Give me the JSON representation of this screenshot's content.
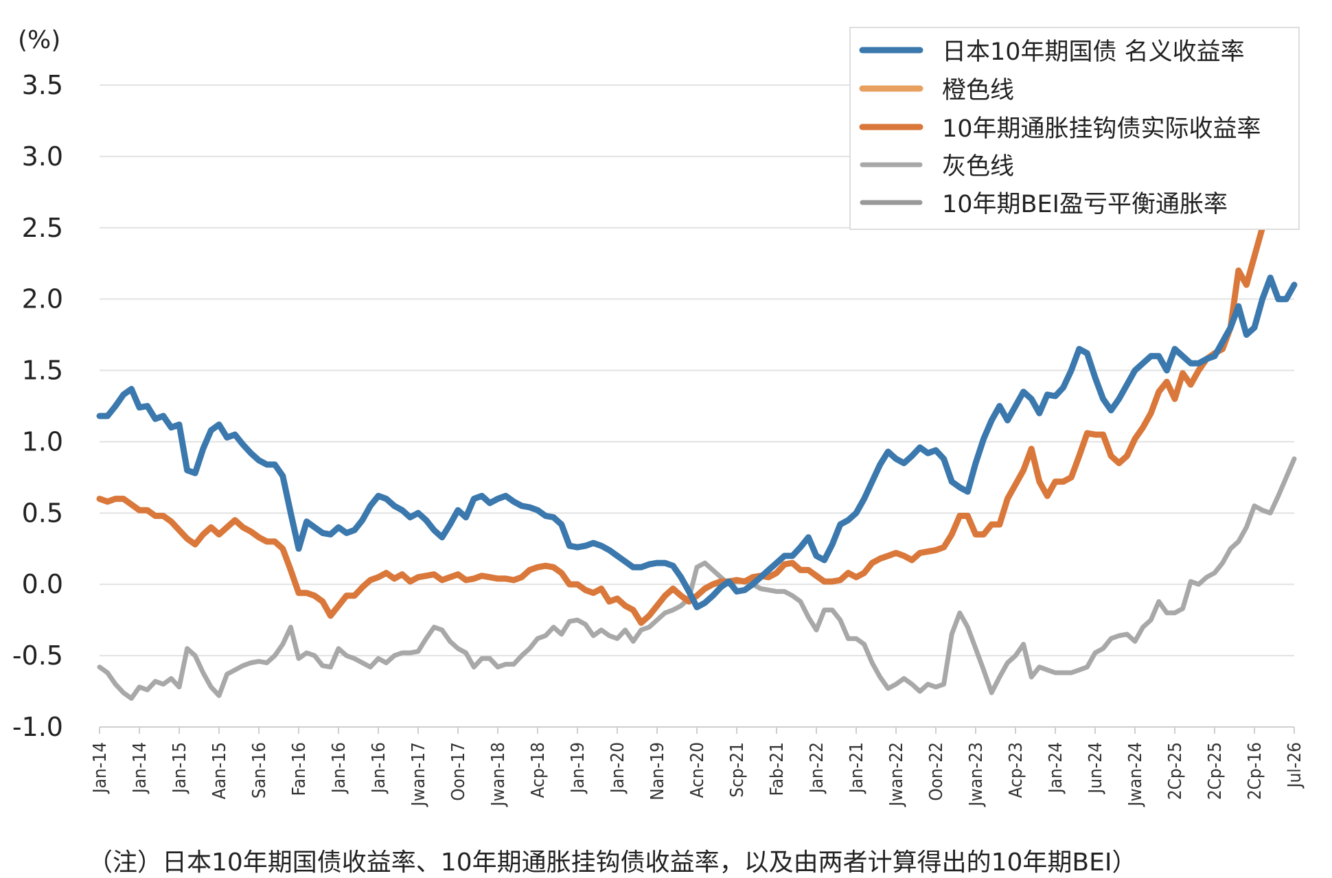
{
  "chart_data": {
    "type": "line",
    "unit_label": "(%)",
    "note": "（注）日本10年期国债收益率、10年期通胀挂钩债收益率，以及由两者计算得出的10年期BEI）",
    "ylim": [
      -1.0,
      3.5
    ],
    "yticks": [
      "3.5",
      "3.0",
      "2.5",
      "2.0",
      "1.5",
      "1.0",
      "0.5",
      "0.0",
      "-0.5",
      "-1.0"
    ],
    "x_tick_labels": [
      "Jan-14",
      "Jan-14",
      "Jan-15",
      "Aan-15",
      "San-16",
      "Fan-16",
      "Jan-16",
      "Jan-16",
      "Jwan-17",
      "Oon-17",
      "Jwan-18",
      "Acp-18",
      "Jan-19",
      "Jan-20",
      "Nan-19",
      "Acn-20",
      "Scp-21",
      "Fab-21",
      "Jan-22",
      "Jan-21",
      "Jwan-22",
      "Oon-22",
      "Jwan-23",
      "Acp-23",
      "Jan-24",
      "Jun-24",
      "Jwan-24",
      "2Cp-25",
      "2Cp-25",
      "2Cp-16",
      "Jul-26"
    ],
    "grid": true,
    "legend_position": "top-right",
    "legend": [
      {
        "name": "日本10年期国债 名义收益率",
        "color": "#3a78ad"
      },
      {
        "name": "橙色线",
        "color": "#e8a060"
      },
      {
        "name": "10年期通胀挂钩债实际收益率",
        "color": "#d9783a"
      },
      {
        "name": "灰色线",
        "color": "#a8a8a8"
      },
      {
        "name": "10年期BEI盈亏平衡通胀率",
        "color": "#999999"
      }
    ],
    "x_range": [
      0,
      150
    ],
    "series": [
      {
        "name": "日本10年期国债 名义收益率",
        "color": "#3a78ad",
        "width": 9,
        "x": [
          0,
          1,
          2,
          3,
          4,
          5,
          6,
          7,
          8,
          9,
          10,
          11,
          12,
          13,
          14,
          15,
          16,
          17,
          18,
          19,
          20,
          21,
          22,
          23,
          24,
          25,
          26,
          27,
          28,
          29,
          30,
          31,
          32,
          33,
          34,
          35,
          36,
          37,
          38,
          39,
          40,
          41,
          42,
          43,
          44,
          45,
          46,
          47,
          48,
          49,
          50,
          51,
          52,
          53,
          54,
          55,
          56,
          57,
          58,
          59,
          60,
          61,
          62,
          63,
          64,
          65,
          66,
          67,
          68,
          69,
          70,
          71,
          72,
          73,
          74,
          75,
          76,
          77,
          78,
          79,
          80,
          81,
          82,
          83,
          84,
          85,
          86,
          87,
          88,
          89,
          90,
          91,
          92,
          93,
          94,
          95,
          96,
          97,
          98,
          99,
          100,
          101,
          102,
          103,
          104,
          105,
          106,
          107,
          108,
          109,
          110,
          111,
          112,
          113,
          114,
          115,
          116,
          117,
          118,
          119,
          120,
          121,
          122,
          123,
          124,
          125,
          126,
          127,
          128,
          129,
          130,
          131,
          132,
          133,
          134,
          135,
          136,
          137,
          138,
          139,
          140,
          141,
          142,
          143,
          144,
          145,
          146,
          147,
          148,
          149,
          150
        ],
        "y": [
          1.18,
          1.18,
          1.25,
          1.33,
          1.37,
          1.24,
          1.25,
          1.16,
          1.18,
          1.1,
          1.12,
          0.8,
          0.78,
          0.95,
          1.08,
          1.12,
          1.03,
          1.05,
          0.98,
          0.92,
          0.87,
          0.84,
          0.84,
          0.76,
          0.5,
          0.25,
          0.44,
          0.4,
          0.36,
          0.35,
          0.4,
          0.36,
          0.38,
          0.45,
          0.55,
          0.62,
          0.6,
          0.55,
          0.52,
          0.47,
          0.5,
          0.45,
          0.38,
          0.33,
          0.42,
          0.52,
          0.47,
          0.6,
          0.62,
          0.57,
          0.6,
          0.62,
          0.58,
          0.55,
          0.54,
          0.52,
          0.48,
          0.47,
          0.42,
          0.27,
          0.26,
          0.27,
          0.29,
          0.27,
          0.24,
          0.2,
          0.16,
          0.12,
          0.12,
          0.14,
          0.15,
          0.15,
          0.13,
          0.05,
          -0.05,
          -0.16,
          -0.13,
          -0.08,
          -0.02,
          0.02,
          -0.05,
          -0.04,
          0.0,
          0.05,
          0.1,
          0.15,
          0.2,
          0.2,
          0.26,
          0.33,
          0.2,
          0.17,
          0.28,
          0.42,
          0.45,
          0.5,
          0.6,
          0.72,
          0.84,
          0.93,
          0.88,
          0.85,
          0.9,
          0.96,
          0.92,
          0.94,
          0.88,
          0.72,
          0.68,
          0.65,
          0.85,
          1.02,
          1.15,
          1.25,
          1.15,
          1.25,
          1.35,
          1.3,
          1.2,
          1.33,
          1.32,
          1.38,
          1.5,
          1.65,
          1.62,
          1.45,
          1.3,
          1.22,
          1.3,
          1.4,
          1.5,
          1.55,
          1.6,
          1.6,
          1.5,
          1.65,
          1.6,
          1.55,
          1.55,
          1.58,
          1.6,
          1.7,
          1.8,
          1.95,
          1.75,
          1.8,
          2.0,
          2.15,
          2.0,
          2.0,
          2.1
        ]
      },
      {
        "name": "10年期通胀挂钩债实际收益率",
        "color": "#d9783a",
        "width": 9,
        "x": [
          0,
          1,
          2,
          3,
          4,
          5,
          6,
          7,
          8,
          9,
          10,
          11,
          12,
          13,
          14,
          15,
          16,
          17,
          18,
          19,
          20,
          21,
          22,
          23,
          24,
          25,
          26,
          27,
          28,
          29,
          30,
          31,
          32,
          33,
          34,
          35,
          36,
          37,
          38,
          39,
          40,
          41,
          42,
          43,
          44,
          45,
          46,
          47,
          48,
          49,
          50,
          51,
          52,
          53,
          54,
          55,
          56,
          57,
          58,
          59,
          60,
          61,
          62,
          63,
          64,
          65,
          66,
          67,
          68,
          69,
          70,
          71,
          72,
          73,
          74,
          75,
          76,
          77,
          78,
          79,
          80,
          81,
          82,
          83,
          84,
          85,
          86,
          87,
          88,
          89,
          90,
          91,
          92,
          93,
          94,
          95,
          96,
          97,
          98,
          99,
          100,
          101,
          102,
          103,
          104,
          105,
          106,
          107,
          108,
          109,
          110,
          111,
          112,
          113,
          114,
          115,
          116,
          117,
          118,
          119,
          120,
          121,
          122,
          123,
          124,
          125,
          126,
          127,
          128,
          129,
          130,
          131,
          132,
          133,
          134,
          135,
          136,
          137,
          138,
          139,
          140,
          141,
          142,
          143,
          144,
          145,
          146,
          147,
          148,
          149,
          150
        ],
        "y": [
          0.6,
          0.58,
          0.6,
          0.6,
          0.56,
          0.52,
          0.52,
          0.48,
          0.48,
          0.44,
          0.38,
          0.32,
          0.28,
          0.35,
          0.4,
          0.35,
          0.4,
          0.45,
          0.4,
          0.37,
          0.33,
          0.3,
          0.3,
          0.25,
          0.1,
          -0.06,
          -0.06,
          -0.08,
          -0.12,
          -0.22,
          -0.15,
          -0.08,
          -0.08,
          -0.02,
          0.03,
          0.05,
          0.08,
          0.04,
          0.07,
          0.02,
          0.05,
          0.06,
          0.07,
          0.03,
          0.05,
          0.07,
          0.03,
          0.04,
          0.06,
          0.05,
          0.04,
          0.04,
          0.03,
          0.05,
          0.1,
          0.12,
          0.13,
          0.12,
          0.08,
          0.0,
          0.0,
          -0.04,
          -0.06,
          -0.03,
          -0.12,
          -0.1,
          -0.15,
          -0.18,
          -0.27,
          -0.22,
          -0.15,
          -0.08,
          -0.03,
          -0.08,
          -0.12,
          -0.08,
          -0.03,
          0.0,
          0.02,
          0.02,
          0.03,
          0.02,
          0.05,
          0.06,
          0.05,
          0.08,
          0.14,
          0.15,
          0.1,
          0.1,
          0.06,
          0.02,
          0.02,
          0.03,
          0.08,
          0.05,
          0.08,
          0.15,
          0.18,
          0.2,
          0.22,
          0.2,
          0.17,
          0.22,
          0.23,
          0.24,
          0.26,
          0.35,
          0.48,
          0.48,
          0.35,
          0.35,
          0.42,
          0.42,
          0.6,
          0.7,
          0.8,
          0.95,
          0.72,
          0.62,
          0.72,
          0.72,
          0.75,
          0.9,
          1.06,
          1.05,
          1.05,
          0.9,
          0.85,
          0.9,
          1.02,
          1.1,
          1.2,
          1.35,
          1.42,
          1.3,
          1.48,
          1.4,
          1.5,
          1.58,
          1.62,
          1.65,
          1.8,
          2.2,
          2.1,
          2.3,
          2.5,
          2.62,
          2.65,
          2.8,
          2.92
        ]
      },
      {
        "name": "10年期BEI盈亏平衡通胀率",
        "color": "#a8a8a8",
        "width": 7,
        "x": [
          0,
          1,
          2,
          3,
          4,
          5,
          6,
          7,
          8,
          9,
          10,
          11,
          12,
          13,
          14,
          15,
          16,
          17,
          18,
          19,
          20,
          21,
          22,
          23,
          24,
          25,
          26,
          27,
          28,
          29,
          30,
          31,
          32,
          33,
          34,
          35,
          36,
          37,
          38,
          39,
          40,
          41,
          42,
          43,
          44,
          45,
          46,
          47,
          48,
          49,
          50,
          51,
          52,
          53,
          54,
          55,
          56,
          57,
          58,
          59,
          60,
          61,
          62,
          63,
          64,
          65,
          66,
          67,
          68,
          69,
          70,
          71,
          72,
          73,
          74,
          75,
          76,
          77,
          78,
          79,
          80,
          81,
          82,
          83,
          84,
          85,
          86,
          87,
          88,
          89,
          90,
          91,
          92,
          93,
          94,
          95,
          96,
          97,
          98,
          99,
          100,
          101,
          102,
          103,
          104,
          105,
          106,
          107,
          108,
          109,
          110,
          111,
          112,
          113,
          114,
          115,
          116,
          117,
          118,
          119,
          120,
          121,
          122,
          123,
          124,
          125,
          126,
          127,
          128,
          129,
          130,
          131,
          132,
          133,
          134,
          135,
          136,
          137,
          138,
          139,
          140,
          141,
          142,
          143,
          144,
          145,
          146,
          147,
          148,
          149,
          150
        ],
        "y": [
          -0.58,
          -0.62,
          -0.7,
          -0.76,
          -0.8,
          -0.72,
          -0.74,
          -0.68,
          -0.7,
          -0.66,
          -0.72,
          -0.45,
          -0.5,
          -0.62,
          -0.72,
          -0.78,
          -0.63,
          -0.6,
          -0.57,
          -0.55,
          -0.54,
          -0.55,
          -0.5,
          -0.42,
          -0.3,
          -0.52,
          -0.48,
          -0.5,
          -0.57,
          -0.58,
          -0.45,
          -0.5,
          -0.52,
          -0.55,
          -0.58,
          -0.52,
          -0.55,
          -0.5,
          -0.48,
          -0.48,
          -0.47,
          -0.38,
          -0.3,
          -0.32,
          -0.4,
          -0.45,
          -0.48,
          -0.58,
          -0.52,
          -0.52,
          -0.58,
          -0.56,
          -0.56,
          -0.5,
          -0.45,
          -0.38,
          -0.36,
          -0.3,
          -0.35,
          -0.26,
          -0.25,
          -0.28,
          -0.36,
          -0.32,
          -0.36,
          -0.38,
          -0.32,
          -0.4,
          -0.32,
          -0.3,
          -0.25,
          -0.2,
          -0.18,
          -0.15,
          -0.1,
          0.12,
          0.15,
          0.1,
          0.05,
          0.0,
          0.02,
          0.02,
          0.0,
          -0.03,
          -0.04,
          -0.05,
          -0.05,
          -0.08,
          -0.12,
          -0.23,
          -0.32,
          -0.18,
          -0.18,
          -0.25,
          -0.38,
          -0.38,
          -0.42,
          -0.55,
          -0.65,
          -0.73,
          -0.7,
          -0.66,
          -0.7,
          -0.75,
          -0.7,
          -0.72,
          -0.7,
          -0.35,
          -0.2,
          -0.3,
          -0.45,
          -0.6,
          -0.76,
          -0.65,
          -0.55,
          -0.5,
          -0.42,
          -0.65,
          -0.58,
          -0.6,
          -0.62,
          -0.62,
          -0.62,
          -0.6,
          -0.58,
          -0.48,
          -0.45,
          -0.38,
          -0.36,
          -0.35,
          -0.4,
          -0.3,
          -0.25,
          -0.12,
          -0.2,
          -0.2,
          -0.17,
          0.02,
          0.0,
          0.05,
          0.08,
          0.15,
          0.25,
          0.3,
          0.4,
          0.55,
          0.52,
          0.5,
          0.62,
          0.75,
          0.88
        ]
      }
    ]
  }
}
